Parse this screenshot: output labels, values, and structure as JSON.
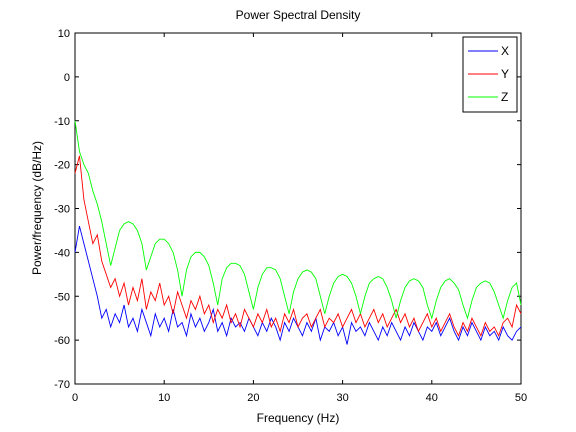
{
  "chart_data": {
    "type": "line",
    "title": "Power Spectral Density",
    "xlabel": "Frequency (Hz)",
    "ylabel": "Power/frequency (dB/Hz)",
    "x": [
      0,
      0.5,
      1,
      1.5,
      2,
      2.5,
      3,
      3.5,
      4,
      4.5,
      5,
      5.5,
      6,
      6.5,
      7,
      7.5,
      8,
      8.5,
      9,
      9.5,
      10,
      10.5,
      11,
      11.5,
      12,
      12.5,
      13,
      13.5,
      14,
      14.5,
      15,
      15.5,
      16,
      16.5,
      17,
      17.5,
      18,
      18.5,
      19,
      19.5,
      20,
      20.5,
      21,
      21.5,
      22,
      22.5,
      23,
      23.5,
      24,
      24.5,
      25,
      25.5,
      26,
      26.5,
      27,
      27.5,
      28,
      28.5,
      29,
      29.5,
      30,
      30.5,
      31,
      31.5,
      32,
      32.5,
      33,
      33.5,
      34,
      34.5,
      35,
      35.5,
      36,
      36.5,
      37,
      37.5,
      38,
      38.5,
      39,
      39.5,
      40,
      40.5,
      41,
      41.5,
      42,
      42.5,
      43,
      43.5,
      44,
      44.5,
      45,
      45.5,
      46,
      46.5,
      47,
      47.5,
      48,
      48.5,
      49,
      49.5,
      50
    ],
    "series": [
      {
        "name": "X",
        "color": "#0000ff",
        "values": [
          -40,
          -34,
          -38,
          -42,
          -46,
          -50,
          -55,
          -53,
          -57,
          -54,
          -56,
          -52,
          -57,
          -55,
          -58,
          -53,
          -56,
          -59,
          -54,
          -57,
          -55,
          -58,
          -53,
          -57,
          -56,
          -59,
          -54,
          -57,
          -55,
          -58,
          -56,
          -53,
          -58,
          -56,
          -59,
          -55,
          -57,
          -56,
          -58,
          -55,
          -57,
          -59,
          -56,
          -58,
          -55,
          -57,
          -60,
          -56,
          -58,
          -55,
          -57,
          -59,
          -56,
          -58,
          -55,
          -60,
          -57,
          -58,
          -56,
          -59,
          -57,
          -61,
          -56,
          -58,
          -57,
          -59,
          -56,
          -58,
          -60,
          -57,
          -59,
          -56,
          -58,
          -60,
          -57,
          -59,
          -56,
          -58,
          -60,
          -57,
          -58,
          -56,
          -59,
          -57,
          -55,
          -58,
          -60,
          -57,
          -59,
          -56,
          -58,
          -60,
          -57,
          -59,
          -58,
          -60,
          -57,
          -59,
          -60,
          -58,
          -57
        ]
      },
      {
        "name": "Y",
        "color": "#ff0000",
        "values": [
          -22,
          -18,
          -28,
          -33,
          -38,
          -36,
          -42,
          -45,
          -48,
          -46,
          -50,
          -47,
          -52,
          -48,
          -51,
          -46,
          -53,
          -49,
          -51,
          -47,
          -52,
          -50,
          -54,
          -49,
          -52,
          -55,
          -51,
          -53,
          -50,
          -54,
          -52,
          -56,
          -53,
          -55,
          -52,
          -56,
          -54,
          -57,
          -53,
          -55,
          -57,
          -54,
          -56,
          -53,
          -57,
          -55,
          -58,
          -54,
          -56,
          -53,
          -57,
          -55,
          -54,
          -57,
          -55,
          -53,
          -57,
          -55,
          -56,
          -54,
          -57,
          -55,
          -53,
          -56,
          -54,
          -57,
          -55,
          -53,
          -56,
          -54,
          -57,
          -55,
          -53,
          -56,
          -54,
          -57,
          -55,
          -58,
          -56,
          -54,
          -57,
          -55,
          -58,
          -56,
          -54,
          -57,
          -59,
          -56,
          -58,
          -55,
          -57,
          -59,
          -56,
          -58,
          -57,
          -59,
          -56,
          -55,
          -57,
          -52,
          -54
        ]
      },
      {
        "name": "Z",
        "color": "#00ff00",
        "values": [
          -10,
          -17,
          -20,
          -22,
          -26,
          -29,
          -33,
          -38,
          -43,
          -39,
          -35,
          -33.5,
          -33,
          -33.5,
          -35,
          -38,
          -44,
          -41,
          -38,
          -37,
          -37,
          -38,
          -40,
          -44,
          -50,
          -44,
          -41,
          -40,
          -40,
          -41,
          -43,
          -47,
          -52,
          -46,
          -43.5,
          -42.5,
          -42.5,
          -43,
          -45,
          -49,
          -53,
          -48,
          -45,
          -43.5,
          -43.5,
          -44,
          -46,
          -50,
          -54,
          -49,
          -46,
          -44.5,
          -44,
          -44.5,
          -46,
          -50,
          -54,
          -50,
          -47,
          -45.5,
          -45,
          -45.5,
          -47,
          -50,
          -54,
          -50,
          -47,
          -46,
          -45.5,
          -46,
          -48,
          -51,
          -55,
          -51,
          -48,
          -46.5,
          -46,
          -46.5,
          -48,
          -52,
          -55,
          -51,
          -48,
          -46.5,
          -46,
          -47,
          -48.5,
          -52,
          -55,
          -51,
          -48,
          -47,
          -46.5,
          -47,
          -49,
          -52,
          -55,
          -51,
          -48,
          -47,
          -52
        ]
      }
    ],
    "xlim": [
      0,
      50
    ],
    "xticks": [
      0,
      10,
      20,
      30,
      40,
      50
    ],
    "ylim": [
      -70,
      10
    ],
    "yticks": [
      -70,
      -60,
      -50,
      -40,
      -30,
      -20,
      -10,
      0,
      10
    ],
    "grid": false,
    "legend": "top-right"
  }
}
